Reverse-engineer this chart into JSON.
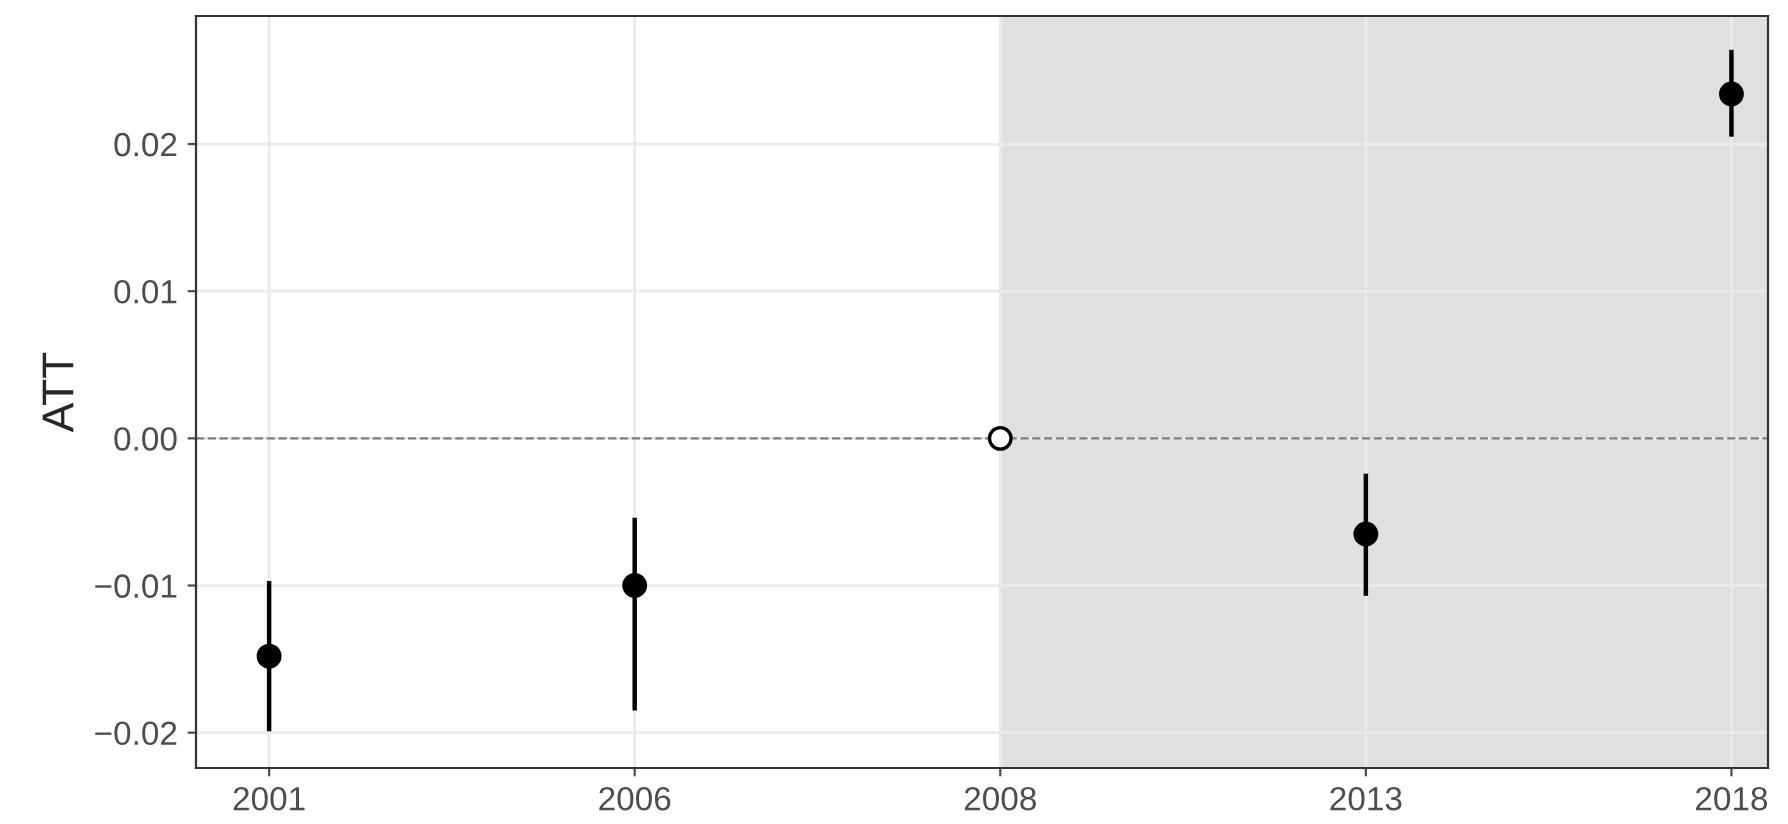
{
  "chart_data": {
    "type": "scatter",
    "ylabel": "ATT",
    "categories": [
      "2001",
      "2006",
      "2008",
      "2013",
      "2018"
    ],
    "series": [
      {
        "values": [
          -0.0148,
          -0.01,
          0.0,
          -0.0065,
          0.0234
        ],
        "colors": [
          "#000000",
          "#000000",
          "#ffffff",
          "#000000",
          "#000000"
        ],
        "errors": [
          [
            -0.0199,
            -0.0097
          ],
          [
            -0.0185,
            -0.0054
          ],
          null,
          [
            -0.0107,
            -0.0024
          ],
          [
            0.0205,
            0.0264
          ]
        ]
      }
    ],
    "ylim": [
      -0.0224,
      0.0287
    ],
    "yticks": [
      {
        "value": -0.02,
        "label": "−0.02"
      },
      {
        "value": -0.01,
        "label": "−0.01"
      },
      {
        "value": 0,
        "label": "0.00"
      },
      {
        "value": 0.01,
        "label": "0.01"
      },
      {
        "value": 0.02,
        "label": "0.02"
      }
    ],
    "ref_lines": [
      {
        "axis": "y",
        "value": 0,
        "color": "#7f7f7f",
        "line_style": "dashed"
      }
    ],
    "bands": [
      {
        "axis": "x",
        "from": "2008",
        "to": "2018",
        "color": "#e0e0e0"
      }
    ],
    "grid": true,
    "marker": "circle"
  }
}
